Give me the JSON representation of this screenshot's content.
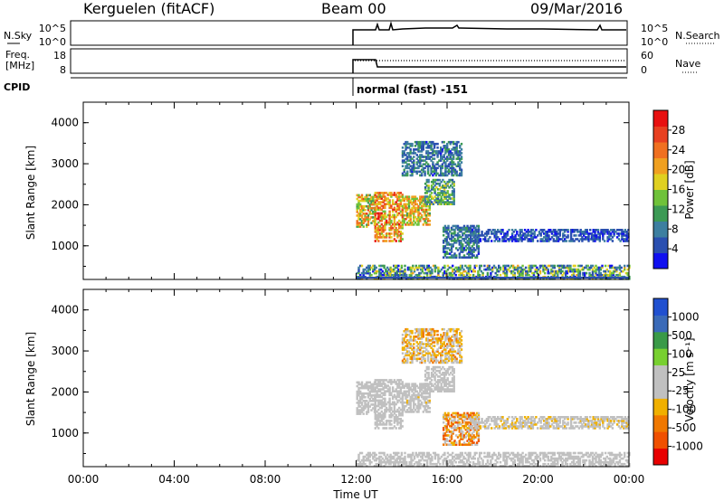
{
  "header": {
    "station": "Kerguelen (fitACF)",
    "beam": "Beam 00",
    "date": "09/Mar/2016"
  },
  "strips": {
    "nsky_label": "N.Sky",
    "nsky_ticks": [
      "10^5",
      "10^0"
    ],
    "nsearch_label": "N.Search",
    "nsearch_ticks": [
      "10^5",
      "10^0"
    ],
    "freq_label_line1": "Freq.",
    "freq_label_line2": "[MHz]",
    "freq_ticks": [
      "18",
      "8"
    ],
    "nave_label": "Nave",
    "nave_ticks": [
      "60",
      "0"
    ],
    "cpid_label": "CPID",
    "cpid_text": "normal (fast) -151"
  },
  "colors": {
    "power": [
      "#1010f0",
      "#2a4fb0",
      "#3d7fa0",
      "#3c9a55",
      "#6fc23a",
      "#e0d020",
      "#f0a020",
      "#f07020",
      "#e84020",
      "#e81010"
    ],
    "velocity": [
      "#e80000",
      "#f05000",
      "#f07800",
      "#f0b000",
      "#c0c0c0",
      "#c0c0c0",
      "#78d030",
      "#3a9a48",
      "#3a6ab8",
      "#2050d0"
    ],
    "ground": "#909090"
  },
  "chart_data": [
    {
      "type": "heatmap",
      "panel": "power",
      "ylabel": "Slant Range [km]",
      "xlim": [
        0,
        24
      ],
      "ylim": [
        180,
        4500
      ],
      "y_ticks": [
        "4000",
        "3000",
        "2000",
        "1000"
      ],
      "colorbar_label": "Power [dB]",
      "colorbar_ticks": [
        "28",
        "24",
        "20",
        "16",
        "12",
        "8",
        "4"
      ],
      "colorbar_range": [
        0,
        32
      ],
      "echo_regions": [
        {
          "t0": 12.0,
          "t1": 12.8,
          "r0": 1450,
          "r1": 2250,
          "v0": 10,
          "v1": 26
        },
        {
          "t0": 12.8,
          "t1": 14.0,
          "r0": 1100,
          "r1": 2300,
          "v0": 14,
          "v1": 30
        },
        {
          "t0": 14.0,
          "t1": 15.2,
          "r0": 1500,
          "r1": 2200,
          "v0": 12,
          "v1": 26
        },
        {
          "t0": 15.0,
          "t1": 16.3,
          "r0": 2000,
          "r1": 2600,
          "v0": 5,
          "v1": 18
        },
        {
          "t0": 14.0,
          "t1": 16.6,
          "r0": 2700,
          "r1": 3550,
          "v0": 3,
          "v1": 12
        },
        {
          "t0": 15.8,
          "t1": 17.4,
          "r0": 700,
          "r1": 1500,
          "v0": 3,
          "v1": 12
        },
        {
          "t0": 17.0,
          "t1": 24.0,
          "r0": 1100,
          "r1": 1400,
          "v0": 2,
          "v1": 8
        },
        {
          "t0": 12.0,
          "t1": 24.0,
          "r0": 180,
          "r1": 520,
          "v0": 2,
          "v1": 20
        }
      ]
    },
    {
      "type": "heatmap",
      "panel": "velocity",
      "ylabel": "Slant Range [km]",
      "xlabel": "Time UT",
      "xlim": [
        0,
        24
      ],
      "ylim": [
        180,
        4500
      ],
      "x_ticks": [
        "00:00",
        "04:00",
        "08:00",
        "12:00",
        "16:00",
        "20:00",
        "00:00"
      ],
      "y_ticks": [
        "4000",
        "3000",
        "2000",
        "1000"
      ],
      "colorbar_label": "Velocity [m s⁻¹]",
      "colorbar_ticks": [
        "1000",
        "500",
        "100",
        "25",
        "-25",
        "-100",
        "-500",
        "-1000"
      ],
      "colorbar_range": [
        -1200,
        1200
      ],
      "echo_regions": [
        {
          "t0": 12.0,
          "t1": 12.8,
          "r0": 1450,
          "r1": 2250,
          "v0": -60,
          "v1": 40
        },
        {
          "t0": 12.8,
          "t1": 14.0,
          "r0": 1100,
          "r1": 2300,
          "v0": -80,
          "v1": 40
        },
        {
          "t0": 14.0,
          "t1": 15.2,
          "r0": 1500,
          "r1": 2200,
          "v0": -250,
          "v1": 40
        },
        {
          "t0": 15.0,
          "t1": 16.3,
          "r0": 2000,
          "r1": 2600,
          "v0": -200,
          "v1": 40
        },
        {
          "t0": 14.0,
          "t1": 16.6,
          "r0": 2700,
          "r1": 3550,
          "v0": -600,
          "v1": 60
        },
        {
          "t0": 15.8,
          "t1": 17.4,
          "r0": 700,
          "r1": 1500,
          "v0": -900,
          "v1": 40
        },
        {
          "t0": 17.0,
          "t1": 24.0,
          "r0": 1100,
          "r1": 1400,
          "v0": -300,
          "v1": 40
        },
        {
          "t0": 12.0,
          "t1": 24.0,
          "r0": 180,
          "r1": 520,
          "v0": -40,
          "v1": 150
        }
      ]
    }
  ]
}
